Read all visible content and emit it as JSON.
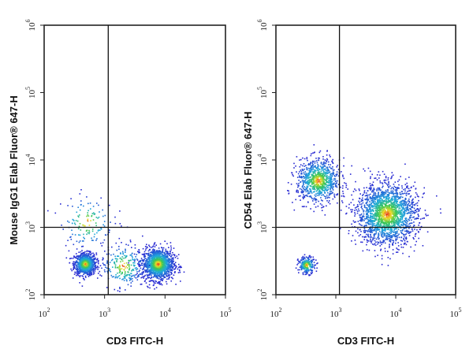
{
  "chart_data": [
    {
      "type": "scatter",
      "subtype": "flow-cytometry density plot",
      "xlabel": "CD3 FITC-H",
      "ylabel": "Mouse IgG1 Elab Fluor® 647-H",
      "x_scale": "log",
      "y_scale": "log",
      "xlim": [
        100,
        100000
      ],
      "ylim": [
        100,
        1000000
      ],
      "x_ticks": [
        {
          "value": 100,
          "base": "10",
          "exp": "2"
        },
        {
          "value": 1000,
          "base": "10",
          "exp": "3"
        },
        {
          "value": 10000,
          "base": "10",
          "exp": "4"
        },
        {
          "value": 100000,
          "base": "10",
          "exp": "5"
        }
      ],
      "y_ticks": [
        {
          "value": 100,
          "base": "10",
          "exp": "2"
        },
        {
          "value": 1000,
          "base": "10",
          "exp": "3"
        },
        {
          "value": 10000,
          "base": "10",
          "exp": "4"
        },
        {
          "value": 100000,
          "base": "10",
          "exp": "5"
        },
        {
          "value": 1000000,
          "base": "10",
          "exp": "6"
        }
      ],
      "gate": {
        "x": 1150,
        "y": 1000
      },
      "populations": [
        {
          "x": 470,
          "y": 290,
          "spread": 0.09,
          "count": 900
        },
        {
          "x": 7500,
          "y": 290,
          "spread": 0.13,
          "count": 1300
        },
        {
          "x": 2000,
          "y": 270,
          "spread": 0.18,
          "count": 250
        },
        {
          "x": 500,
          "y": 1200,
          "spread": 0.22,
          "count": 140
        }
      ]
    },
    {
      "type": "scatter",
      "subtype": "flow-cytometry density plot",
      "xlabel": "CD3 FITC-H",
      "ylabel": "CD54 Elab Fluor® 647-H",
      "x_scale": "log",
      "y_scale": "log",
      "xlim": [
        100,
        100000
      ],
      "ylim": [
        100,
        1000000
      ],
      "x_ticks": [
        {
          "value": 100,
          "base": "10",
          "exp": "2"
        },
        {
          "value": 1000,
          "base": "10",
          "exp": "3"
        },
        {
          "value": 10000,
          "base": "10",
          "exp": "4"
        },
        {
          "value": 100000,
          "base": "10",
          "exp": "5"
        }
      ],
      "y_ticks": [
        {
          "value": 100,
          "base": "10",
          "exp": "2"
        },
        {
          "value": 1000,
          "base": "10",
          "exp": "3"
        },
        {
          "value": 10000,
          "base": "10",
          "exp": "4"
        },
        {
          "value": 100000,
          "base": "10",
          "exp": "5"
        },
        {
          "value": 1000000,
          "base": "10",
          "exp": "6"
        }
      ],
      "gate": {
        "x": 1150,
        "y": 1000
      },
      "populations": [
        {
          "x": 500,
          "y": 5000,
          "spread": 0.18,
          "count": 900
        },
        {
          "x": 320,
          "y": 280,
          "spread": 0.07,
          "count": 220
        },
        {
          "x": 7000,
          "y": 1600,
          "spread": 0.25,
          "count": 2000
        }
      ]
    }
  ]
}
